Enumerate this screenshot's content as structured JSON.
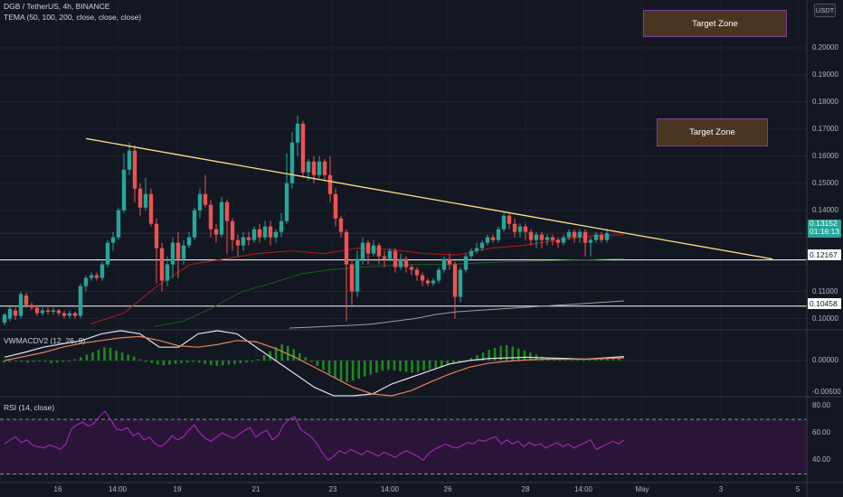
{
  "header": {
    "symbol": "DGB / TetherUS, 4h, BINANCE",
    "tema": "TEMA (50, 100, 200, close, close, close)",
    "vwmacd": "VWMACDV2 (12, 26, 9)",
    "rsi": "RSI (14, close)",
    "currency": "USDT"
  },
  "target_zones": {
    "upper": "Target Zone",
    "lower": "Target Zone"
  },
  "price_badges": {
    "last_price": "0.13152",
    "countdown": "01:16:13",
    "level_1": "0.12167",
    "level_2": "0.10458"
  },
  "colors": {
    "background": "#131722",
    "up_candle": "#26a69a",
    "down_candle": "#ef5350",
    "trendline": "#ffe082",
    "tema_50": "#b71c1c",
    "tema_100": "#1b5e20",
    "tema_200": "#9e9e9e",
    "rsi_line": "#9c27b0",
    "macd_hist": "#1b8a1b"
  },
  "chart_data": [
    {
      "type": "candlestick",
      "title": "DGB / TetherUS, 4h, BINANCE",
      "x_tick_labels": [
        "16",
        "14:00",
        "19",
        "21",
        "23",
        "14:00",
        "26",
        "28",
        "14:00",
        "May",
        "3",
        "5"
      ],
      "y_tick_labels": [
        "0.20000",
        "0.19000",
        "0.18000",
        "0.17000",
        "0.16000",
        "0.15000",
        "0.14000",
        "0.11000",
        "0.10000"
      ],
      "ylim": [
        0.0965,
        0.212
      ],
      "candles": [
        [
          0.0985,
          0.1015,
          0.0975,
          0.102
        ],
        [
          0.1,
          0.1035,
          0.099,
          0.1045
        ],
        [
          0.103,
          0.101,
          0.0995,
          0.104
        ],
        [
          0.101,
          0.109,
          0.1,
          0.11
        ],
        [
          0.1085,
          0.105,
          0.104,
          0.1095
        ],
        [
          0.105,
          0.104,
          0.103,
          0.106
        ],
        [
          0.104,
          0.102,
          0.101,
          0.105
        ],
        [
          0.102,
          0.103,
          0.101,
          0.104
        ],
        [
          0.103,
          0.1025,
          0.1015,
          0.104
        ],
        [
          0.1025,
          0.103,
          0.1015,
          0.104
        ],
        [
          0.103,
          0.102,
          0.101,
          0.1035
        ],
        [
          0.102,
          0.101,
          0.1,
          0.103
        ],
        [
          0.101,
          0.102,
          0.1,
          0.103
        ],
        [
          0.102,
          0.101,
          0.1,
          0.1025
        ],
        [
          0.101,
          0.112,
          0.1,
          0.113
        ],
        [
          0.112,
          0.115,
          0.11,
          0.116
        ],
        [
          0.115,
          0.116,
          0.114,
          0.117
        ],
        [
          0.116,
          0.115,
          0.114,
          0.117
        ],
        [
          0.115,
          0.12,
          0.114,
          0.121
        ],
        [
          0.12,
          0.128,
          0.119,
          0.129
        ],
        [
          0.128,
          0.13,
          0.125,
          0.132
        ],
        [
          0.13,
          0.14,
          0.129,
          0.141
        ],
        [
          0.14,
          0.155,
          0.139,
          0.161
        ],
        [
          0.155,
          0.162,
          0.153,
          0.165
        ],
        [
          0.162,
          0.148,
          0.143,
          0.164
        ],
        [
          0.148,
          0.141,
          0.138,
          0.15
        ],
        [
          0.141,
          0.146,
          0.14,
          0.152
        ],
        [
          0.146,
          0.135,
          0.134,
          0.148
        ],
        [
          0.135,
          0.126,
          0.113,
          0.137
        ],
        [
          0.126,
          0.114,
          0.11,
          0.128
        ],
        [
          0.114,
          0.12,
          0.112,
          0.123
        ],
        [
          0.12,
          0.128,
          0.115,
          0.13
        ],
        [
          0.128,
          0.122,
          0.115,
          0.132
        ],
        [
          0.122,
          0.127,
          0.12,
          0.129
        ],
        [
          0.127,
          0.13,
          0.126,
          0.132
        ],
        [
          0.13,
          0.14,
          0.129,
          0.141
        ],
        [
          0.14,
          0.146,
          0.137,
          0.148
        ],
        [
          0.146,
          0.142,
          0.141,
          0.153
        ],
        [
          0.142,
          0.133,
          0.13,
          0.144
        ],
        [
          0.133,
          0.131,
          0.128,
          0.135
        ],
        [
          0.131,
          0.143,
          0.13,
          0.145
        ],
        [
          0.143,
          0.136,
          0.124,
          0.144
        ],
        [
          0.136,
          0.129,
          0.125,
          0.137
        ],
        [
          0.129,
          0.127,
          0.123,
          0.131
        ],
        [
          0.127,
          0.13,
          0.125,
          0.132
        ],
        [
          0.13,
          0.129,
          0.127,
          0.132
        ],
        [
          0.129,
          0.133,
          0.128,
          0.134
        ],
        [
          0.133,
          0.13,
          0.128,
          0.135
        ],
        [
          0.13,
          0.134,
          0.129,
          0.136
        ],
        [
          0.134,
          0.13,
          0.127,
          0.136
        ],
        [
          0.13,
          0.132,
          0.128,
          0.133
        ],
        [
          0.132,
          0.136,
          0.13,
          0.139
        ],
        [
          0.136,
          0.15,
          0.135,
          0.161
        ],
        [
          0.15,
          0.165,
          0.148,
          0.169
        ],
        [
          0.165,
          0.172,
          0.16,
          0.175
        ],
        [
          0.172,
          0.154,
          0.152,
          0.173
        ],
        [
          0.154,
          0.158,
          0.151,
          0.159
        ],
        [
          0.158,
          0.153,
          0.15,
          0.16
        ],
        [
          0.153,
          0.158,
          0.152,
          0.16
        ],
        [
          0.158,
          0.153,
          0.151,
          0.159
        ],
        [
          0.153,
          0.146,
          0.143,
          0.16
        ],
        [
          0.146,
          0.137,
          0.134,
          0.148
        ],
        [
          0.137,
          0.132,
          0.13,
          0.138
        ],
        [
          0.132,
          0.12,
          0.099,
          0.133
        ],
        [
          0.12,
          0.11,
          0.105,
          0.122
        ],
        [
          0.11,
          0.122,
          0.108,
          0.125
        ],
        [
          0.122,
          0.128,
          0.12,
          0.13
        ],
        [
          0.128,
          0.124,
          0.12,
          0.129
        ],
        [
          0.124,
          0.127,
          0.123,
          0.129
        ],
        [
          0.127,
          0.123,
          0.12,
          0.128
        ],
        [
          0.123,
          0.122,
          0.119,
          0.125
        ],
        [
          0.122,
          0.125,
          0.121,
          0.126
        ],
        [
          0.125,
          0.119,
          0.117,
          0.126
        ],
        [
          0.119,
          0.122,
          0.118,
          0.124
        ],
        [
          0.122,
          0.119,
          0.117,
          0.123
        ],
        [
          0.119,
          0.118,
          0.116,
          0.12
        ],
        [
          0.118,
          0.116,
          0.114,
          0.119
        ],
        [
          0.116,
          0.114,
          0.112,
          0.117
        ],
        [
          0.114,
          0.113,
          0.112,
          0.115
        ],
        [
          0.113,
          0.114,
          0.112,
          0.115
        ],
        [
          0.114,
          0.118,
          0.113,
          0.119
        ],
        [
          0.118,
          0.122,
          0.117,
          0.123
        ],
        [
          0.122,
          0.12,
          0.118,
          0.124
        ],
        [
          0.12,
          0.108,
          0.1,
          0.121
        ],
        [
          0.108,
          0.118,
          0.106,
          0.119
        ],
        [
          0.118,
          0.123,
          0.117,
          0.124
        ],
        [
          0.123,
          0.125,
          0.122,
          0.126
        ],
        [
          0.125,
          0.126,
          0.124,
          0.128
        ],
        [
          0.126,
          0.128,
          0.125,
          0.129
        ],
        [
          0.128,
          0.13,
          0.127,
          0.131
        ],
        [
          0.13,
          0.129,
          0.128,
          0.131
        ],
        [
          0.129,
          0.133,
          0.128,
          0.134
        ],
        [
          0.133,
          0.138,
          0.132,
          0.139
        ],
        [
          0.138,
          0.135,
          0.133,
          0.139
        ],
        [
          0.135,
          0.132,
          0.13,
          0.137
        ],
        [
          0.132,
          0.134,
          0.13,
          0.135
        ],
        [
          0.134,
          0.132,
          0.129,
          0.135
        ],
        [
          0.132,
          0.129,
          0.127,
          0.133
        ],
        [
          0.129,
          0.131,
          0.126,
          0.132
        ],
        [
          0.131,
          0.129,
          0.126,
          0.132
        ],
        [
          0.129,
          0.13,
          0.127,
          0.131
        ],
        [
          0.13,
          0.129,
          0.127,
          0.131
        ],
        [
          0.129,
          0.128,
          0.126,
          0.13
        ],
        [
          0.128,
          0.13,
          0.127,
          0.131
        ],
        [
          0.13,
          0.132,
          0.129,
          0.133
        ],
        [
          0.132,
          0.13,
          0.128,
          0.133
        ],
        [
          0.13,
          0.132,
          0.128,
          0.133
        ],
        [
          0.132,
          0.128,
          0.123,
          0.133
        ],
        [
          0.128,
          0.129,
          0.123,
          0.13
        ],
        [
          0.129,
          0.131,
          0.128,
          0.132
        ],
        [
          0.131,
          0.129,
          0.128,
          0.132
        ],
        [
          0.129,
          0.1315,
          0.128,
          0.133
        ]
      ],
      "horizontal_levels": [
        0.12167,
        0.10458
      ],
      "trendline": {
        "start": [
          0.1665
        ],
        "end": [
          0.122
        ]
      },
      "tema_50": [
        0.098,
        0.102,
        0.112,
        0.12,
        0.122,
        0.124,
        0.125,
        0.124,
        0.126,
        0.1255,
        0.124,
        0.1235,
        0.126,
        0.127,
        0.129,
        0.1305,
        0.131
      ],
      "tema_100": [
        0.097,
        0.099,
        0.104,
        0.11,
        0.113,
        0.1165,
        0.118,
        0.119,
        0.1195,
        0.12,
        0.12,
        0.1205,
        0.121,
        0.1212,
        0.1215,
        0.1218,
        0.1222
      ],
      "tema_200": [
        0.0965,
        0.0968,
        0.0972,
        0.0975,
        0.098,
        0.099,
        0.1,
        0.1015,
        0.1025,
        0.103,
        0.1035,
        0.104,
        0.1045,
        0.105,
        0.1055,
        0.106,
        0.1065
      ]
    },
    {
      "type": "bar",
      "title": "VWMACDV2 (12, 26, 9)",
      "y_tick_labels": [
        "0.00000",
        "-0.00500"
      ],
      "ylim": [
        -0.0056,
        0.0046
      ],
      "histogram": [
        -0.0003,
        -0.0002,
        -0.0001,
        -0.0002,
        -0.0003,
        -0.0002,
        -0.0001,
        -0.0002,
        -0.0004,
        -0.0003,
        -0.0002,
        -0.0001,
        0.0002,
        0.0005,
        0.0009,
        0.0012,
        0.0016,
        0.002,
        0.0019,
        0.0015,
        0.0012,
        0.0009,
        0.0006,
        0.0002,
        -0.0002,
        -0.0004,
        -0.0006,
        -0.0007,
        -0.0006,
        -0.0005,
        -0.0004,
        -0.0003,
        -0.0002,
        -0.0003,
        -0.0005,
        -0.0007,
        -0.0008,
        -0.0007,
        -0.0006,
        -0.0005,
        -0.0004,
        -0.0003,
        -0.0002,
        0.0002,
        0.0008,
        0.0014,
        0.002,
        0.0024,
        0.0022,
        0.0017,
        0.0011,
        0.0005,
        -0.0002,
        -0.0008,
        -0.0014,
        -0.002,
        -0.0026,
        -0.003,
        -0.0032,
        -0.003,
        -0.0027,
        -0.0024,
        -0.0021,
        -0.0018,
        -0.0015,
        -0.0014,
        -0.0015,
        -0.0016,
        -0.0017,
        -0.0018,
        -0.0017,
        -0.0015,
        -0.0013,
        -0.0011,
        -0.0009,
        -0.0007,
        -0.0005,
        -0.0003,
        -0.0001,
        0.0004,
        0.0008,
        0.0012,
        0.0016,
        0.0019,
        0.0022,
        0.0023,
        0.0021,
        0.0018,
        0.0015,
        0.0012,
        0.0009,
        0.0006,
        0.0004,
        0.0002,
        0.0001,
        0.0002,
        0.0001,
        0.0002,
        0.0001,
        0.0002,
        0.0003,
        0.0002,
        0.0003,
        0.0004,
        0.0004
      ],
      "macd_line": [
        0.0005,
        0.0012,
        0.002,
        0.0025,
        0.003,
        0.004,
        0.0045,
        0.004,
        0.002,
        0.002,
        0.004,
        0.0045,
        0.004,
        0.002,
        0.0,
        -0.002,
        -0.004,
        -0.0055,
        -0.006,
        -0.005,
        -0.0035,
        -0.0025,
        -0.0015,
        -0.0005,
        0.0,
        0.0003,
        0.0004,
        0.0005,
        0.0004,
        0.0003,
        0.0002,
        0.0004,
        0.0006
      ],
      "signal_line": [
        0.0,
        0.0006,
        0.0012,
        0.002,
        0.0026,
        0.003,
        0.0034,
        0.0036,
        0.003,
        0.0022,
        0.002,
        0.0024,
        0.003,
        0.0028,
        0.0018,
        0.0005,
        -0.001,
        -0.0025,
        -0.004,
        -0.005,
        -0.0055,
        -0.0045,
        -0.0032,
        -0.002,
        -0.001,
        -0.0004,
        -0.0001,
        0.0001,
        0.0002,
        0.0002,
        0.0002,
        0.0003,
        0.0004
      ]
    },
    {
      "type": "line",
      "title": "RSI (14, close)",
      "y_tick_labels": [
        "80.00",
        "60.00",
        "40.00"
      ],
      "ylim": [
        23,
        84
      ],
      "bands": [
        70,
        30
      ],
      "values": [
        52,
        55,
        57,
        53,
        55,
        51,
        50,
        49,
        51,
        50,
        48,
        52,
        63,
        66,
        68,
        65,
        67,
        72,
        76,
        70,
        63,
        62,
        64,
        58,
        60,
        55,
        57,
        52,
        50,
        53,
        58,
        55,
        57,
        62,
        66,
        60,
        56,
        54,
        57,
        60,
        58,
        56,
        59,
        62,
        64,
        57,
        60,
        62,
        55,
        58,
        66,
        70,
        72,
        63,
        60,
        57,
        52,
        45,
        40,
        43,
        47,
        45,
        48,
        46,
        44,
        47,
        45,
        43,
        46,
        44,
        42,
        45,
        47,
        45,
        43,
        40,
        45,
        48,
        50,
        52,
        50,
        49,
        51,
        53,
        52,
        55,
        54,
        56,
        57,
        52,
        55,
        52,
        54,
        50,
        53,
        51,
        52,
        49,
        51,
        53,
        50,
        52,
        49,
        51,
        53,
        55,
        48,
        50,
        52,
        54,
        52,
        55
      ]
    }
  ]
}
